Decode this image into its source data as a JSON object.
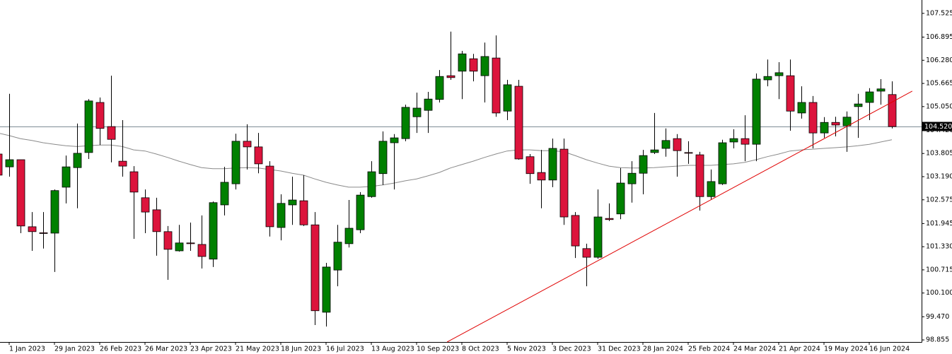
{
  "chart_data": {
    "type": "candlestick",
    "categories": [
      null,
      "1 Jan 2023",
      null,
      null,
      null,
      "29 Jan 2023",
      null,
      null,
      null,
      "26 Feb 2023",
      null,
      null,
      null,
      "26 Mar 2023",
      null,
      null,
      null,
      "23 Apr 2023",
      null,
      null,
      null,
      "21 May 2023",
      null,
      null,
      null,
      "18 Jun 2023",
      null,
      null,
      null,
      "16 Jul 2023",
      null,
      null,
      null,
      "13 Aug 2023",
      null,
      null,
      null,
      "10 Sep 2023",
      null,
      null,
      null,
      "8 Oct 2023",
      null,
      null,
      null,
      "5 Nov 2023",
      null,
      null,
      null,
      "3 Dec 2023",
      null,
      null,
      null,
      "31 Dec 2023",
      null,
      null,
      null,
      "28 Jan 2024",
      null,
      null,
      null,
      "25 Feb 2024",
      null,
      null,
      null,
      "24 Mar 2024",
      null,
      null,
      null,
      "21 Apr 2024",
      null,
      null,
      null,
      "19 May 2024",
      null,
      null,
      null,
      "16 Jun 2024",
      null,
      null
    ],
    "open": [
      103.79,
      103.45,
      103.64,
      101.86,
      101.7,
      101.69,
      102.91,
      103.43,
      103.83,
      105.16,
      104.52,
      103.6,
      103.32,
      102.63,
      102.31,
      101.73,
      101.22,
      101.43,
      101.39,
      101.0,
      102.44,
      103.0,
      104.13,
      103.98,
      103.47,
      101.84,
      102.44,
      102.55,
      101.91,
      99.59,
      100.71,
      101.41,
      101.78,
      102.66,
      103.27,
      104.09,
      104.2,
      104.78,
      104.95,
      105.24,
      105.87,
      105.99,
      106.32,
      105.87,
      106.34,
      104.93,
      105.59,
      103.72,
      103.3,
      103.1,
      103.92,
      102.16,
      101.28,
      101.05,
      102.08,
      102.2,
      103.0,
      103.28,
      103.83,
      103.94,
      104.2,
      103.83,
      103.77,
      102.66,
      103.0,
      104.11,
      104.2,
      104.05,
      105.76,
      105.87,
      105.87,
      104.88,
      105.16,
      104.35,
      104.63,
      104.54,
      105.05,
      105.16,
      105.46,
      105.37
    ],
    "high": [
      103.85,
      105.39,
      103.64,
      102.25,
      102.25,
      102.85,
      103.75,
      104.6,
      105.25,
      105.29,
      105.87,
      104.69,
      103.47,
      102.85,
      102.63,
      101.88,
      101.91,
      101.97,
      102.16,
      102.53,
      103.45,
      104.33,
      104.58,
      104.35,
      103.6,
      102.72,
      103.19,
      103.23,
      102.25,
      100.9,
      101.91,
      102.57,
      102.78,
      103.6,
      104.39,
      104.32,
      105.1,
      105.42,
      105.44,
      106.02,
      107.04,
      106.53,
      106.45,
      106.75,
      106.94,
      105.76,
      105.76,
      103.79,
      103.9,
      104.2,
      104.2,
      102.25,
      101.41,
      102.85,
      102.48,
      103.42,
      103.6,
      103.9,
      104.88,
      104.47,
      104.32,
      104.13,
      103.85,
      103.38,
      104.17,
      104.45,
      104.82,
      105.93,
      106.3,
      106.23,
      106.3,
      105.59,
      105.33,
      104.77,
      104.78,
      104.92,
      105.39,
      105.54,
      105.78,
      105.72
    ],
    "low": [
      103.19,
      103.19,
      101.69,
      101.22,
      101.28,
      100.66,
      102.48,
      102.35,
      103.66,
      104.03,
      103.57,
      103.19,
      101.54,
      101.69,
      101.09,
      100.45,
      101.2,
      101.22,
      100.75,
      100.79,
      102.16,
      102.85,
      103.38,
      103.28,
      101.6,
      101.5,
      101.91,
      101.88,
      99.25,
      99.21,
      100.28,
      101.31,
      101.69,
      102.63,
      102.97,
      102.85,
      104.13,
      104.35,
      104.35,
      105.16,
      105.76,
      105.25,
      105.72,
      105.16,
      104.78,
      104.69,
      103.64,
      103.0,
      102.35,
      102.91,
      101.91,
      101.03,
      100.28,
      101.01,
      102.01,
      102.06,
      102.5,
      102.72,
      103.79,
      103.72,
      103.19,
      103.53,
      102.29,
      102.59,
      102.97,
      103.94,
      103.6,
      103.6,
      105.59,
      105.25,
      104.41,
      104.73,
      103.94,
      104.22,
      104.26,
      103.85,
      104.22,
      104.69,
      105.1,
      104.47
    ],
    "close": [
      103.23,
      103.64,
      101.88,
      101.73,
      101.69,
      102.82,
      103.45,
      103.81,
      105.2,
      104.47,
      104.18,
      103.47,
      102.78,
      102.25,
      101.73,
      101.26,
      101.43,
      101.41,
      101.07,
      102.5,
      103.04,
      104.13,
      103.98,
      103.53,
      101.86,
      102.48,
      102.57,
      101.91,
      99.63,
      100.79,
      101.45,
      101.82,
      102.7,
      103.32,
      104.13,
      104.22,
      105.03,
      105.01,
      105.25,
      105.85,
      105.82,
      106.45,
      105.99,
      106.38,
      104.88,
      105.63,
      103.66,
      103.27,
      103.1,
      103.94,
      102.12,
      101.35,
      101.05,
      102.12,
      102.05,
      103.02,
      103.28,
      103.75,
      103.9,
      104.15,
      103.88,
      103.82,
      102.66,
      103.06,
      104.09,
      104.2,
      104.05,
      105.78,
      105.85,
      105.95,
      104.93,
      105.16,
      104.35,
      104.63,
      104.56,
      104.77,
      105.12,
      105.44,
      105.52,
      104.52
    ],
    "up_color": "#008000",
    "down_color": "#dc143c",
    "wick_color": "#000000",
    "ma": {
      "color": "#8a8a8a",
      "values": [
        104.35,
        104.28,
        104.2,
        104.15,
        104.09,
        104.05,
        104.01,
        103.99,
        104.01,
        104.03,
        104.03,
        103.99,
        103.9,
        103.87,
        103.79,
        103.7,
        103.6,
        103.51,
        103.43,
        103.4,
        103.4,
        103.42,
        103.43,
        103.42,
        103.38,
        103.34,
        103.28,
        103.23,
        103.13,
        103.04,
        102.97,
        102.91,
        102.91,
        102.93,
        102.97,
        103.02,
        103.08,
        103.13,
        103.21,
        103.3,
        103.42,
        103.51,
        103.6,
        103.7,
        103.79,
        103.87,
        103.9,
        103.9,
        103.88,
        103.88,
        103.85,
        103.75,
        103.64,
        103.55,
        103.47,
        103.43,
        103.42,
        103.42,
        103.43,
        103.45,
        103.47,
        103.49,
        103.49,
        103.49,
        103.51,
        103.53,
        103.57,
        103.64,
        103.72,
        103.79,
        103.87,
        103.9,
        103.92,
        103.94,
        103.96,
        103.98,
        104.01,
        104.05,
        104.11,
        104.17
      ]
    },
    "trendline": {
      "color": "#e00000",
      "x": [
        39.7,
        80.8
      ],
      "y": [
        98.8,
        105.46
      ]
    },
    "last_price": {
      "value": 104.52,
      "label": "104.520",
      "color": "#7f8c96"
    },
    "ylim": [
      98.8,
      107.88
    ],
    "yticks": [
      107.525,
      106.895,
      {
        "value": 106.28,
        "label": "106.280"
      },
      105.665,
      {
        "value": 105.05,
        "label": "105.050"
      },
      {
        "value": 104.42,
        "label": "104.420"
      },
      103.805,
      {
        "value": 103.19,
        "label": "103.190"
      },
      102.575,
      101.945,
      {
        "value": 101.33,
        "label": "101.330"
      },
      100.715,
      {
        "value": 100.1,
        "label": "100.100"
      },
      {
        "value": 99.47,
        "label": "99.470"
      },
      98.855
    ]
  }
}
